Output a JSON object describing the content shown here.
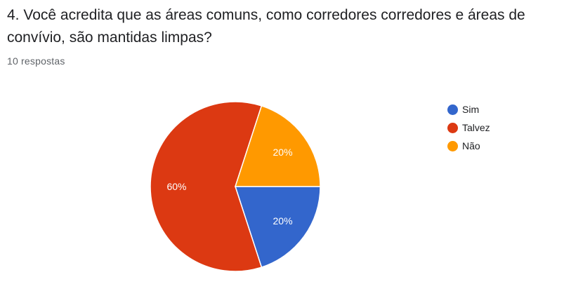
{
  "question": {
    "title": "4. Você acredita que as áreas comuns, como corredores corredores e áreas de convívio, são mantidas limpas?"
  },
  "responses": {
    "count_text": "10 respostas"
  },
  "chart_data": {
    "type": "pie",
    "categories": [
      "Sim",
      "Talvez",
      "Não"
    ],
    "values": [
      20,
      60,
      20
    ],
    "labels": [
      "20%",
      "60%",
      "20%"
    ],
    "colors": [
      "#3366cc",
      "#dc3912",
      "#ff9900"
    ],
    "legend_position": "right"
  }
}
